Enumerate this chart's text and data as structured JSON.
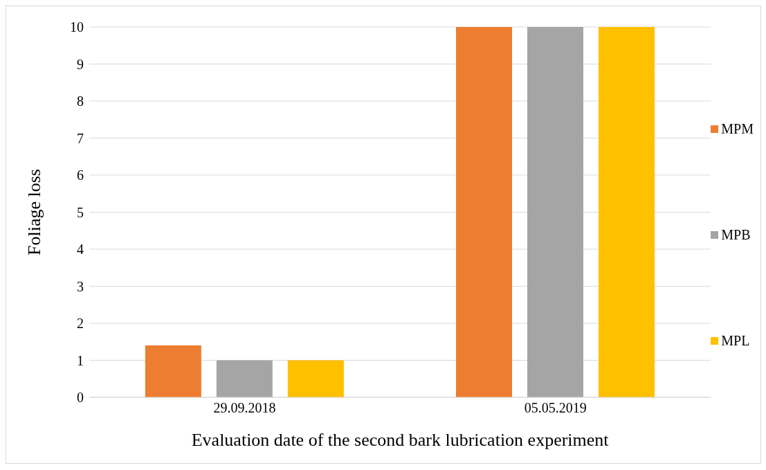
{
  "chart_data": {
    "type": "bar",
    "xlabel": "Evaluation date of the second bark lubrication experiment",
    "ylabel": "Foliage loss",
    "categories": [
      "29.09.2018",
      "05.05.2019"
    ],
    "series": [
      {
        "name": "MPM",
        "color": "#ed7d31",
        "values": [
          1.4,
          10
        ]
      },
      {
        "name": "MPB",
        "color": "#a5a5a5",
        "values": [
          1,
          10
        ]
      },
      {
        "name": "MPL",
        "color": "#ffc000",
        "values": [
          1,
          10
        ]
      }
    ],
    "ylim": [
      0,
      10
    ],
    "yticks": [
      0,
      1,
      2,
      3,
      4,
      5,
      6,
      7,
      8,
      9,
      10
    ],
    "grid": "y",
    "legend": "right"
  }
}
